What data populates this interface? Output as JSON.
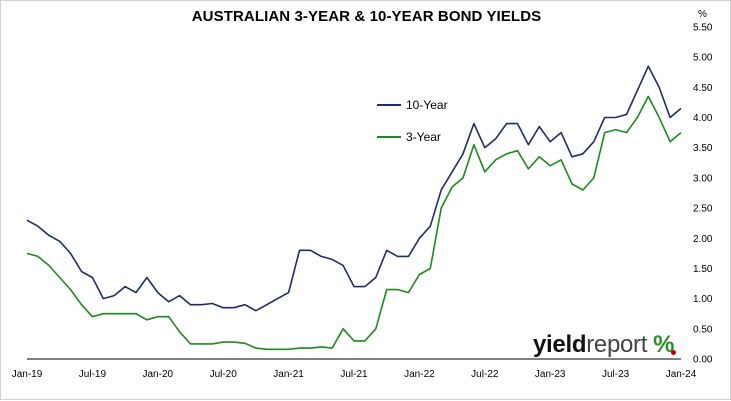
{
  "chart_data": {
    "type": "line",
    "title": "AUSTRALIAN 3-YEAR & 10-YEAR BOND YIELDS",
    "unit": "%",
    "xlabel": "",
    "ylabel": "",
    "x_ticks": [
      "Jan-19",
      "Jul-19",
      "Jan-20",
      "Jul-20",
      "Jan-21",
      "Jul-21",
      "Jan-22",
      "Jul-22",
      "Jan-23",
      "Jul-23",
      "Jan-24"
    ],
    "y_ticks": [
      "0.00",
      "0.50",
      "1.00",
      "1.50",
      "2.00",
      "2.50",
      "3.00",
      "3.50",
      "4.00",
      "4.50",
      "5.00",
      "5.50"
    ],
    "ylim": [
      0,
      5.5
    ],
    "xlim": [
      "2019-01",
      "2024-01"
    ],
    "grid": false,
    "legend_position": "center-right",
    "x": [
      "2019-01",
      "2019-02",
      "2019-03",
      "2019-04",
      "2019-05",
      "2019-06",
      "2019-07",
      "2019-08",
      "2019-09",
      "2019-10",
      "2019-11",
      "2019-12",
      "2020-01",
      "2020-02",
      "2020-03",
      "2020-04",
      "2020-05",
      "2020-06",
      "2020-07",
      "2020-08",
      "2020-09",
      "2020-10",
      "2020-11",
      "2020-12",
      "2021-01",
      "2021-02",
      "2021-03",
      "2021-04",
      "2021-05",
      "2021-06",
      "2021-07",
      "2021-08",
      "2021-09",
      "2021-10",
      "2021-11",
      "2021-12",
      "2022-01",
      "2022-02",
      "2022-03",
      "2022-04",
      "2022-05",
      "2022-06",
      "2022-07",
      "2022-08",
      "2022-09",
      "2022-10",
      "2022-11",
      "2022-12",
      "2023-01",
      "2023-02",
      "2023-03",
      "2023-04",
      "2023-05",
      "2023-06",
      "2023-07",
      "2023-08",
      "2023-09",
      "2023-10",
      "2023-11",
      "2023-12",
      "2024-01"
    ],
    "series": [
      {
        "name": "10-Year",
        "color": "#1f2d6b",
        "values": [
          2.3,
          2.2,
          2.05,
          1.95,
          1.75,
          1.45,
          1.35,
          1.0,
          1.05,
          1.2,
          1.1,
          1.35,
          1.1,
          0.95,
          1.05,
          0.9,
          0.9,
          0.92,
          0.85,
          0.85,
          0.9,
          0.8,
          0.9,
          1.0,
          1.1,
          1.8,
          1.8,
          1.7,
          1.65,
          1.55,
          1.2,
          1.2,
          1.35,
          1.8,
          1.7,
          1.7,
          2.0,
          2.2,
          2.8,
          3.1,
          3.4,
          3.9,
          3.5,
          3.65,
          3.9,
          3.9,
          3.55,
          3.85,
          3.6,
          3.75,
          3.35,
          3.4,
          3.6,
          4.0,
          4.0,
          4.05,
          4.45,
          4.85,
          4.5,
          4.0,
          4.15
        ]
      },
      {
        "name": "3-Year",
        "color": "#1e8a1e",
        "values": [
          1.75,
          1.7,
          1.55,
          1.35,
          1.15,
          0.9,
          0.7,
          0.75,
          0.75,
          0.75,
          0.75,
          0.65,
          0.7,
          0.7,
          0.45,
          0.25,
          0.25,
          0.25,
          0.28,
          0.28,
          0.26,
          0.18,
          0.16,
          0.16,
          0.16,
          0.18,
          0.18,
          0.2,
          0.18,
          0.5,
          0.3,
          0.3,
          0.5,
          1.15,
          1.15,
          1.1,
          1.4,
          1.5,
          2.5,
          2.85,
          3.0,
          3.55,
          3.1,
          3.3,
          3.4,
          3.45,
          3.15,
          3.35,
          3.2,
          3.3,
          2.9,
          2.8,
          3.0,
          3.75,
          3.8,
          3.75,
          4.0,
          4.35,
          4.0,
          3.6,
          3.75
        ]
      }
    ]
  },
  "logo": {
    "bold": "yield",
    "light": "report",
    "symbol": "%"
  }
}
